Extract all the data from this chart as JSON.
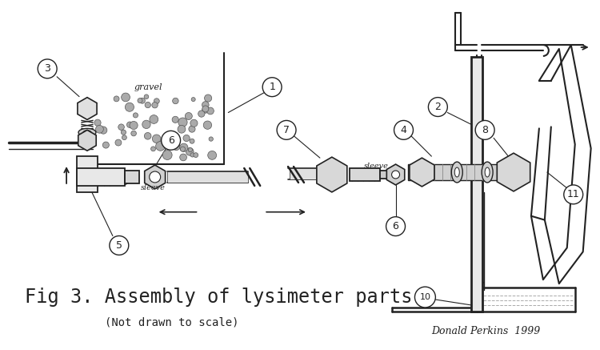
{
  "title": "Fig 3. Assembly of lysimeter parts",
  "subtitle": "(Not drawn to scale)",
  "credit": "Donald Perkins  1999",
  "bg_color": "#ffffff",
  "line_color": "#222222",
  "title_fontsize": 17,
  "subtitle_fontsize": 10,
  "credit_fontsize": 9
}
